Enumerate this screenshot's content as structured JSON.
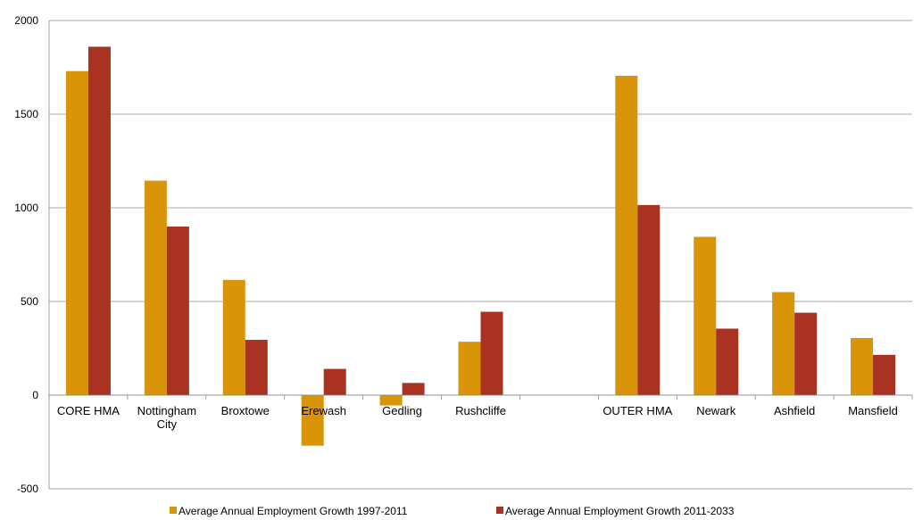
{
  "chart_data": {
    "type": "bar",
    "categories": [
      "CORE HMA",
      "Nottingham City",
      "Broxtowe",
      "Erewash",
      "Gedling",
      "Rushcliffe",
      "",
      "OUTER HMA",
      "Newark",
      "Ashfield",
      "Mansfield"
    ],
    "category_lines": [
      [
        "CORE HMA"
      ],
      [
        "Nottingham",
        "City"
      ],
      [
        "Broxtowe"
      ],
      [
        "Erewash"
      ],
      [
        "Gedling"
      ],
      [
        "Rushcliffe"
      ],
      [],
      [
        "OUTER HMA"
      ],
      [
        "Newark"
      ],
      [
        "Ashfield"
      ],
      [
        "Mansfield"
      ]
    ],
    "series": [
      {
        "name": "Average Annual Employment Growth 1997-2011",
        "color": "#D99408",
        "values": [
          1730,
          1145,
          615,
          -270,
          -55,
          285,
          null,
          1705,
          845,
          550,
          305
        ]
      },
      {
        "name": "Average Annual Employment Growth 2011-2033",
        "color": "#A93223",
        "values": [
          1860,
          900,
          295,
          140,
          65,
          445,
          null,
          1015,
          355,
          440,
          215
        ]
      }
    ],
    "ylim": [
      -500,
      2000
    ],
    "yticks": [
      -500,
      0,
      500,
      1000,
      1500,
      2000
    ],
    "ytick_labels": [
      "-500",
      "0",
      "500",
      "1000",
      "1500",
      "2000"
    ],
    "grid": true,
    "legend_position": "bottom",
    "title": "",
    "xlabel": "",
    "ylabel": ""
  }
}
